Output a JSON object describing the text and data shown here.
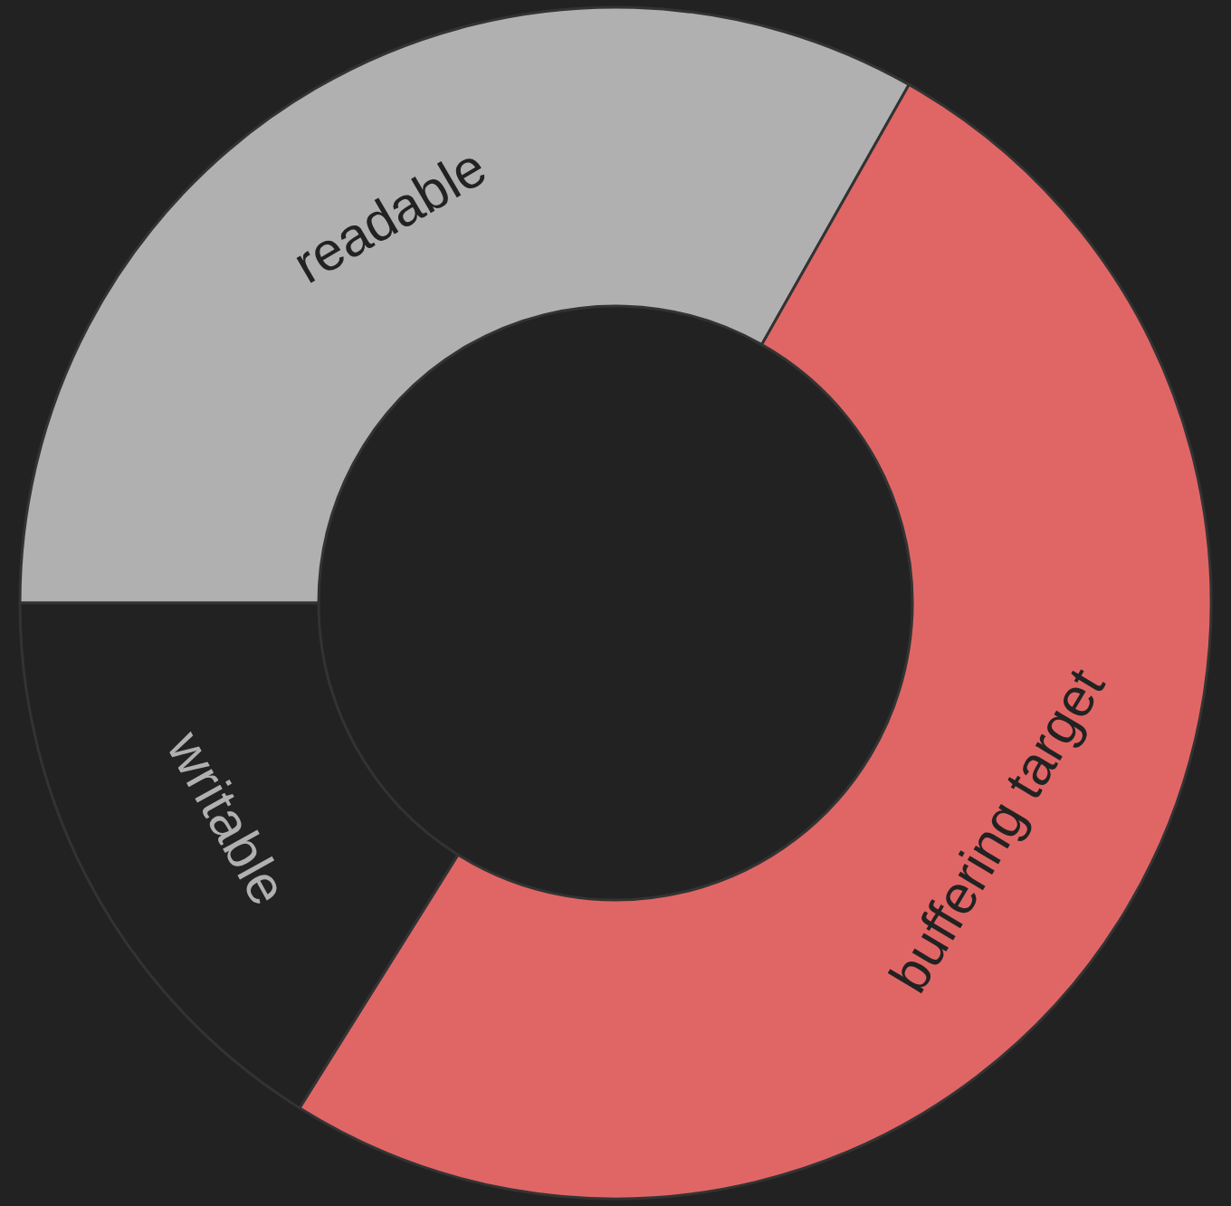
{
  "chart_data": {
    "type": "donut",
    "categories": [
      "readable",
      "buffering target",
      "writable"
    ],
    "values": [
      33.2,
      50.7,
      16.1
    ],
    "colors": [
      "#b0b0b0",
      "#e06666",
      "#222222"
    ]
  }
}
